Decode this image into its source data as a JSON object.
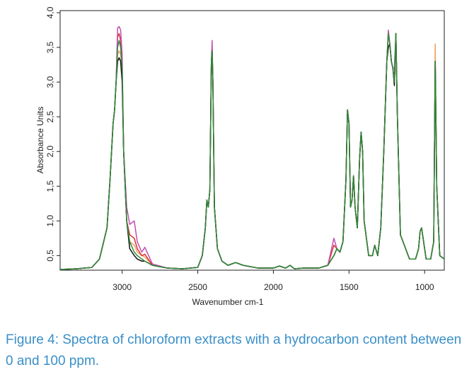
{
  "chart_data": {
    "type": "line",
    "xlabel": "Wavenumber cm-1",
    "ylabel": "Absorbance Units",
    "caption": "Figure 4: Spectra of chloroform extracts with a hydrocarbon content between 0 and 100 ppm.",
    "xlim": [
      3410,
      870
    ],
    "xticks": [
      3000,
      2500,
      2000,
      1500,
      1000
    ],
    "reversed_x": true,
    "ylim": [
      0.29,
      4.03
    ],
    "yticks": [
      {
        "value": 0.5,
        "label": "0,5"
      },
      {
        "value": 1.0,
        "label": "1,0"
      },
      {
        "value": 1.5,
        "label": "1,5"
      },
      {
        "value": 2.0,
        "label": "2,0"
      },
      {
        "value": 2.5,
        "label": "2,5"
      },
      {
        "value": 3.0,
        "label": "3,0"
      },
      {
        "value": 3.5,
        "label": "3,5"
      },
      {
        "value": 4.0,
        "label": "4,0"
      }
    ],
    "x": [
      3410,
      3300,
      3200,
      3150,
      3100,
      3080,
      3060,
      3050,
      3040,
      3030,
      3020,
      3010,
      3000,
      2990,
      2970,
      2950,
      2920,
      2900,
      2870,
      2850,
      2800,
      2700,
      2600,
      2500,
      2470,
      2450,
      2440,
      2430,
      2420,
      2410,
      2405,
      2400,
      2390,
      2370,
      2340,
      2300,
      2250,
      2200,
      2100,
      2000,
      1960,
      1920,
      1890,
      1860,
      1800,
      1700,
      1640,
      1600,
      1580,
      1560,
      1540,
      1520,
      1510,
      1500,
      1490,
      1480,
      1470,
      1460,
      1445,
      1430,
      1420,
      1410,
      1400,
      1370,
      1345,
      1330,
      1310,
      1290,
      1270,
      1250,
      1240,
      1230,
      1220,
      1210,
      1200,
      1190,
      1180,
      1160,
      1100,
      1060,
      1040,
      1030,
      1020,
      1010,
      990,
      960,
      940,
      930,
      920,
      900,
      870
    ],
    "series": [
      {
        "color": "#f0a060",
        "values": [
          0.3,
          0.31,
          0.33,
          0.45,
          0.9,
          1.6,
          2.4,
          2.6,
          3.0,
          3.4,
          3.45,
          3.4,
          3.2,
          2.0,
          1.0,
          0.7,
          0.65,
          0.55,
          0.5,
          0.48,
          0.36,
          0.32,
          0.31,
          0.33,
          0.5,
          0.9,
          1.3,
          1.2,
          1.45,
          3.3,
          3.45,
          3.0,
          1.2,
          0.6,
          0.42,
          0.36,
          0.4,
          0.36,
          0.32,
          0.32,
          0.35,
          0.32,
          0.36,
          0.31,
          0.32,
          0.32,
          0.36,
          0.5,
          0.6,
          0.55,
          0.7,
          1.6,
          2.6,
          2.4,
          1.2,
          1.3,
          1.65,
          1.2,
          0.9,
          1.9,
          2.28,
          2.0,
          1.0,
          0.5,
          0.5,
          0.65,
          0.5,
          0.9,
          2.0,
          3.3,
          3.7,
          3.55,
          3.3,
          3.2,
          3.0,
          3.7,
          2.5,
          0.8,
          0.45,
          0.45,
          0.6,
          0.85,
          0.9,
          0.75,
          0.45,
          0.45,
          0.7,
          3.55,
          1.5,
          0.5,
          0.45
        ]
      },
      {
        "color": "#e03030",
        "values": [
          0.3,
          0.31,
          0.33,
          0.45,
          0.9,
          1.6,
          2.4,
          2.6,
          3.0,
          3.65,
          3.7,
          3.6,
          3.2,
          2.0,
          1.0,
          0.8,
          0.75,
          0.6,
          0.5,
          0.52,
          0.36,
          0.32,
          0.31,
          0.33,
          0.5,
          0.9,
          1.3,
          1.2,
          1.45,
          3.3,
          3.45,
          3.0,
          1.2,
          0.6,
          0.42,
          0.36,
          0.4,
          0.36,
          0.32,
          0.32,
          0.35,
          0.32,
          0.36,
          0.31,
          0.32,
          0.32,
          0.36,
          0.65,
          0.6,
          0.55,
          0.7,
          1.6,
          2.6,
          2.4,
          1.2,
          1.3,
          1.65,
          1.2,
          0.9,
          1.9,
          2.28,
          2.0,
          1.0,
          0.5,
          0.5,
          0.65,
          0.5,
          0.9,
          2.0,
          3.3,
          3.7,
          3.55,
          3.3,
          3.2,
          3.0,
          3.7,
          2.5,
          0.8,
          0.45,
          0.45,
          0.6,
          0.85,
          0.9,
          0.75,
          0.45,
          0.45,
          0.7,
          3.3,
          1.5,
          0.5,
          0.45
        ]
      },
      {
        "color": "#c050b0",
        "values": [
          0.3,
          0.31,
          0.33,
          0.45,
          0.9,
          1.6,
          2.4,
          2.6,
          3.0,
          3.78,
          3.8,
          3.75,
          3.4,
          2.0,
          1.2,
          0.95,
          1.0,
          0.7,
          0.55,
          0.62,
          0.38,
          0.32,
          0.31,
          0.33,
          0.5,
          0.9,
          1.3,
          1.2,
          1.45,
          3.3,
          3.6,
          3.0,
          1.2,
          0.6,
          0.42,
          0.36,
          0.4,
          0.36,
          0.32,
          0.32,
          0.35,
          0.32,
          0.36,
          0.31,
          0.32,
          0.32,
          0.36,
          0.75,
          0.6,
          0.55,
          0.7,
          1.6,
          2.6,
          2.4,
          1.2,
          1.3,
          1.65,
          1.2,
          0.9,
          1.9,
          2.28,
          2.0,
          1.0,
          0.5,
          0.5,
          0.65,
          0.5,
          0.9,
          2.0,
          3.3,
          3.75,
          3.55,
          3.3,
          3.2,
          3.2,
          3.7,
          2.5,
          0.8,
          0.45,
          0.45,
          0.6,
          0.85,
          0.9,
          0.75,
          0.45,
          0.45,
          0.7,
          3.3,
          1.5,
          0.5,
          0.45
        ]
      },
      {
        "color": "#111111",
        "values": [
          0.3,
          0.31,
          0.33,
          0.45,
          0.9,
          1.6,
          2.4,
          2.6,
          3.0,
          3.3,
          3.35,
          3.3,
          3.0,
          2.0,
          1.0,
          0.6,
          0.5,
          0.45,
          0.42,
          0.42,
          0.36,
          0.32,
          0.31,
          0.33,
          0.5,
          0.9,
          1.3,
          1.2,
          1.45,
          3.3,
          3.45,
          3.0,
          1.2,
          0.6,
          0.42,
          0.36,
          0.4,
          0.36,
          0.32,
          0.32,
          0.35,
          0.32,
          0.36,
          0.31,
          0.32,
          0.32,
          0.36,
          0.5,
          0.6,
          0.55,
          0.7,
          1.6,
          2.6,
          2.4,
          1.2,
          1.3,
          1.65,
          1.2,
          0.9,
          1.9,
          2.28,
          2.0,
          1.0,
          0.5,
          0.5,
          0.65,
          0.5,
          0.9,
          2.0,
          3.3,
          3.5,
          3.55,
          3.3,
          3.2,
          2.95,
          3.7,
          2.5,
          0.8,
          0.45,
          0.45,
          0.6,
          0.85,
          0.9,
          0.75,
          0.45,
          0.45,
          0.7,
          3.3,
          1.5,
          0.5,
          0.45
        ]
      },
      {
        "color": "#2e8b3a",
        "values": [
          0.3,
          0.31,
          0.33,
          0.45,
          0.9,
          1.6,
          2.4,
          2.6,
          3.0,
          3.5,
          3.6,
          3.5,
          3.2,
          2.0,
          1.0,
          0.7,
          0.55,
          0.5,
          0.45,
          0.42,
          0.36,
          0.32,
          0.31,
          0.33,
          0.5,
          0.9,
          1.3,
          1.2,
          1.45,
          3.3,
          3.45,
          3.0,
          1.2,
          0.6,
          0.42,
          0.36,
          0.4,
          0.36,
          0.32,
          0.32,
          0.35,
          0.32,
          0.36,
          0.31,
          0.32,
          0.32,
          0.36,
          0.5,
          0.6,
          0.55,
          0.7,
          1.6,
          2.6,
          2.4,
          1.2,
          1.3,
          1.65,
          1.2,
          0.9,
          1.9,
          2.28,
          2.0,
          1.0,
          0.5,
          0.5,
          0.65,
          0.5,
          0.9,
          2.0,
          3.3,
          3.7,
          3.55,
          3.3,
          3.2,
          3.0,
          3.7,
          2.5,
          0.8,
          0.45,
          0.45,
          0.6,
          0.85,
          0.9,
          0.75,
          0.45,
          0.45,
          0.7,
          3.3,
          1.5,
          0.5,
          0.45
        ]
      }
    ]
  }
}
